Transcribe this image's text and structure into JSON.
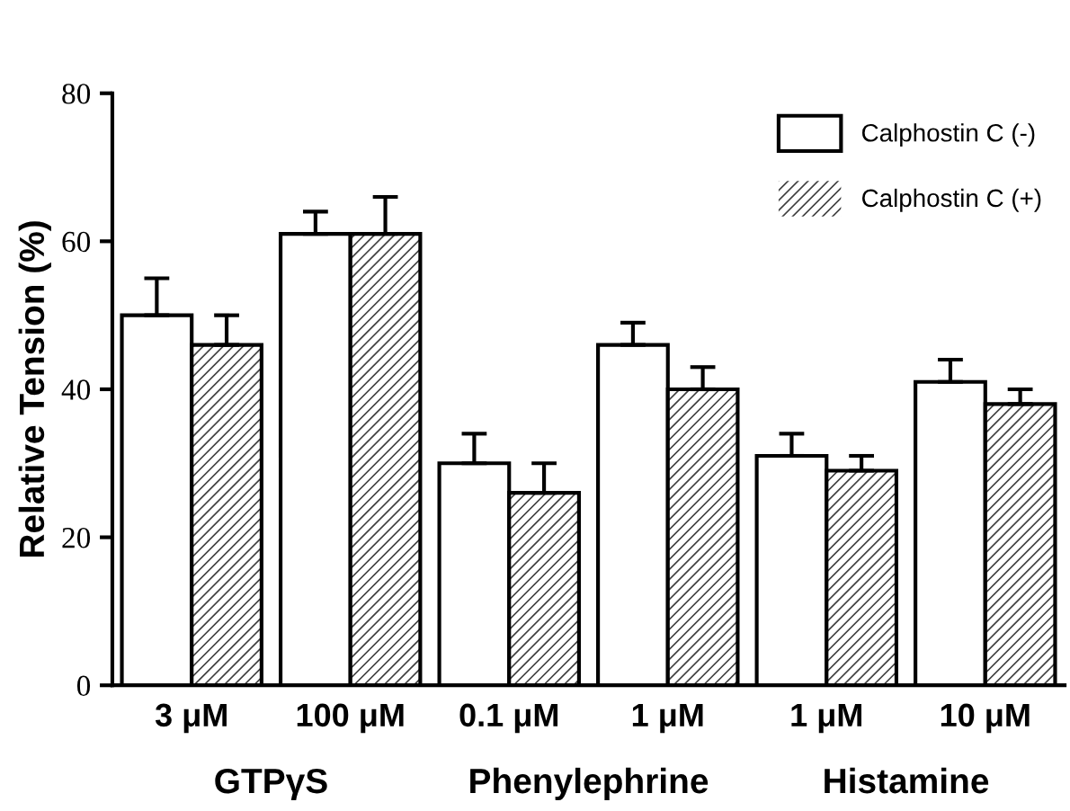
{
  "chart_data": {
    "type": "bar",
    "ylabel": "Relative Tension (%)",
    "categories": [
      "3 μM",
      "100 μM",
      "0.1 μM",
      "1 μM",
      "1 μM",
      "10 μM"
    ],
    "series": [
      {
        "name": "Calphostin C (-)",
        "color": "#ffffff",
        "values": [
          50,
          61,
          30,
          46,
          31,
          41
        ],
        "errors": [
          [
            50,
            55
          ],
          [
            61,
            64
          ],
          [
            30,
            34
          ],
          [
            46,
            49
          ],
          [
            31,
            34
          ],
          [
            41,
            44
          ]
        ]
      },
      {
        "name": "Calphostin C (+)",
        "color": "#404040",
        "values": [
          46,
          61,
          26,
          40,
          29,
          38
        ],
        "errors": [
          [
            46,
            50
          ],
          [
            61,
            66
          ],
          [
            26,
            30
          ],
          [
            40,
            43
          ],
          [
            29,
            31
          ],
          [
            38,
            40
          ]
        ]
      }
    ],
    "annotations": [
      "GTPγS",
      "Phenylephrine",
      "Histamine"
    ],
    "ylim": [
      0,
      80
    ],
    "yticks": [
      0,
      20,
      40,
      60,
      80
    ],
    "grid": false,
    "legend": "top right"
  }
}
